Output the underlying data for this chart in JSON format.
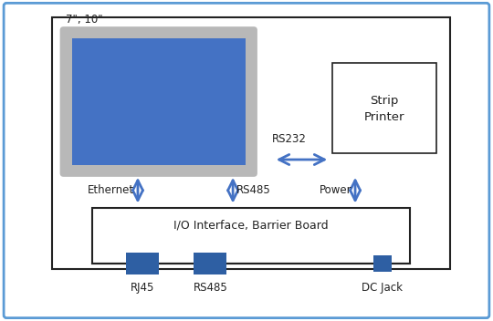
{
  "bg_color": "#ffffff",
  "outer_border_color": "#5b9bd5",
  "inner_border_color": "#222222",
  "screen_gray": "#b8b8b8",
  "screen_blue": "#4472c4",
  "printer_border": "#222222",
  "io_board_border": "#222222",
  "connector_color": "#2e5fa3",
  "arrow_color": "#4472c4",
  "text_color": "#222222",
  "label_7_10": "7\", 10\"",
  "label_rs232": "RS232",
  "label_strip": "Strip",
  "label_printer": "Printer",
  "label_ethernet": "Ethernet",
  "label_rs485_top": "RS485",
  "label_power": "Power",
  "label_io": "I/O Interface, Barrier Board",
  "label_rj45": "RJ45",
  "label_rs485_bot": "RS485",
  "label_dcjack": "DC Jack",
  "figw": 5.4,
  "figh": 3.52,
  "dpi": 100
}
